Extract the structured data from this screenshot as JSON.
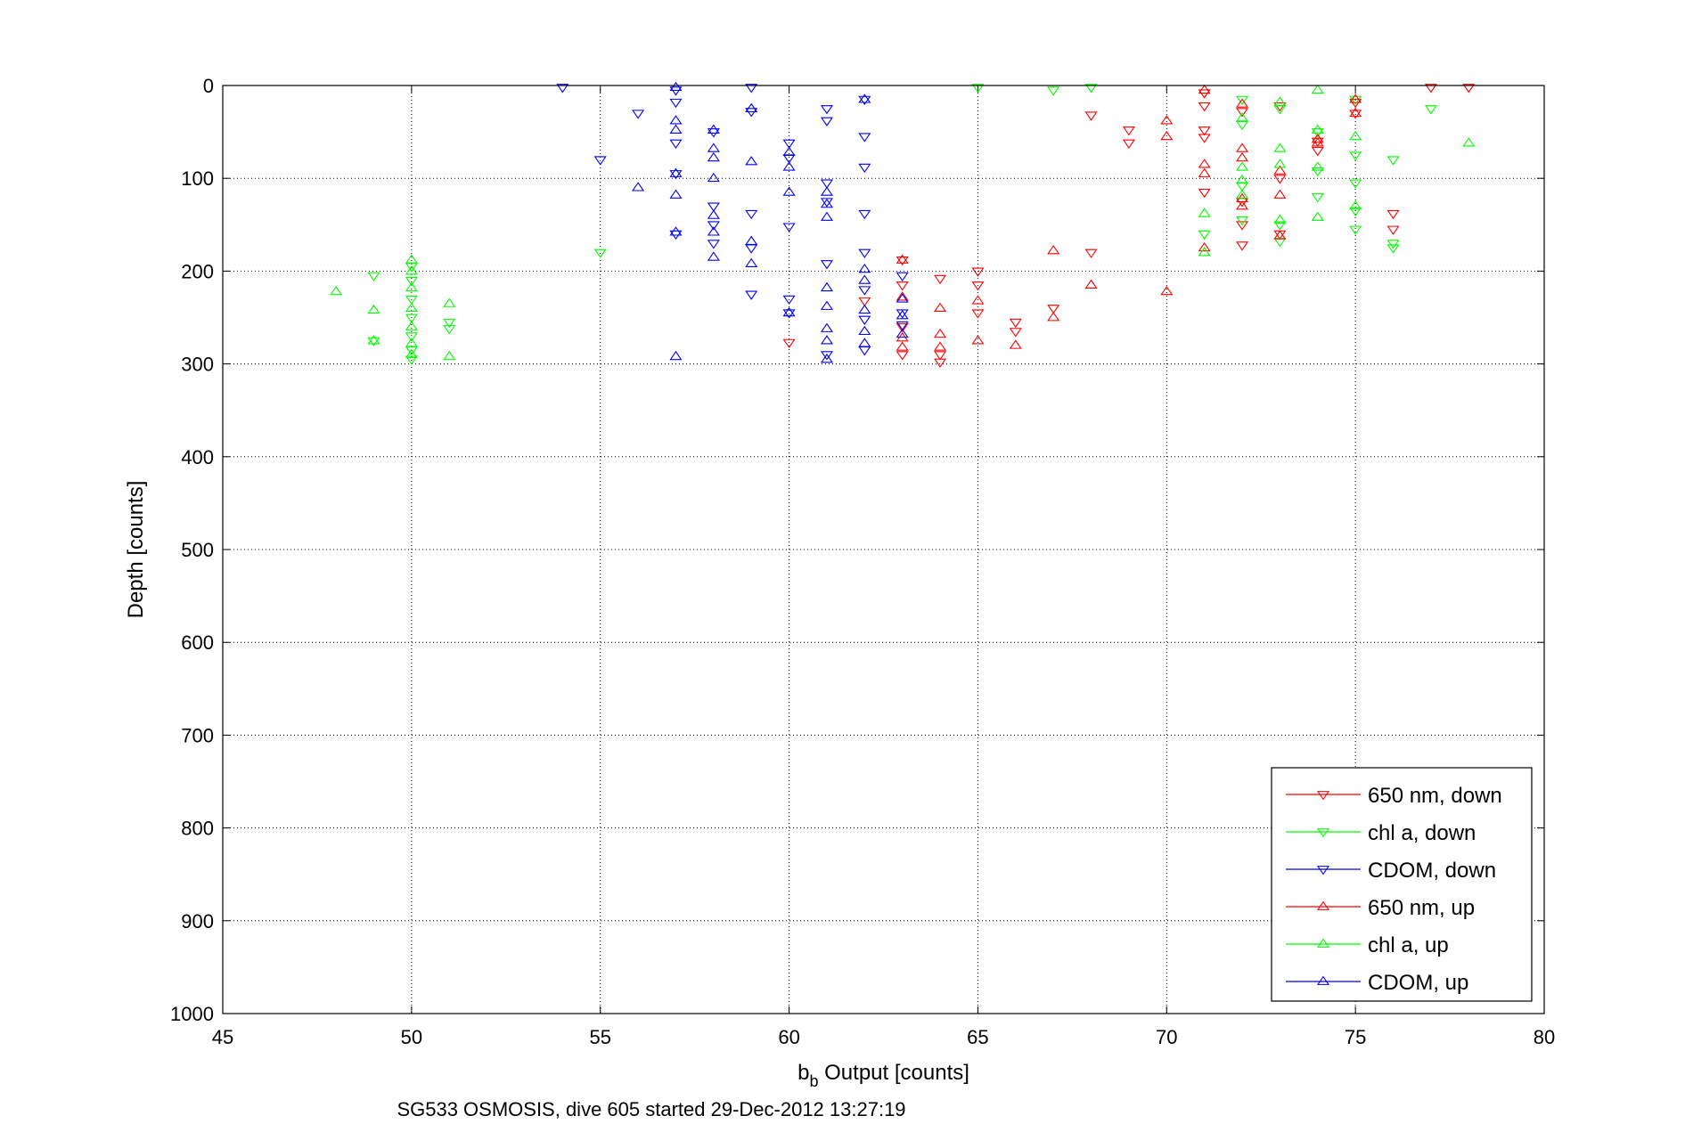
{
  "chart_data": {
    "type": "scatter",
    "xlabel_main": "b",
    "xlabel_sub": "b",
    "xlabel_rest": " Output [counts]",
    "ylabel": "Depth [counts]",
    "caption": "SG533 OSMOSIS, dive 605 started 29-Dec-2012 13:27:19",
    "xlim": [
      45,
      80
    ],
    "ylim": [
      0,
      1000
    ],
    "y_reversed": true,
    "grid": true,
    "legend_position": "bottom-right",
    "x_ticks": [
      45,
      50,
      55,
      60,
      65,
      70,
      75,
      80
    ],
    "y_ticks": [
      0,
      100,
      200,
      300,
      400,
      500,
      600,
      700,
      800,
      900,
      1000
    ],
    "series": [
      {
        "name": "650 nm, down",
        "color": "#ff0000",
        "marker": "triangle-down",
        "points": [
          [
            78,
            2
          ],
          [
            77,
            2
          ],
          [
            68,
            32
          ],
          [
            69,
            48
          ],
          [
            69,
            62
          ],
          [
            71,
            8
          ],
          [
            71,
            22
          ],
          [
            71,
            48
          ],
          [
            71,
            56
          ],
          [
            72,
            28
          ],
          [
            73,
            22
          ],
          [
            73,
            100
          ],
          [
            73,
            160
          ],
          [
            74,
            60
          ],
          [
            74,
            70
          ],
          [
            75,
            18
          ],
          [
            75,
            30
          ],
          [
            76,
            138
          ],
          [
            76,
            155
          ],
          [
            71,
            115
          ],
          [
            72,
            125
          ],
          [
            72,
            150
          ],
          [
            72,
            172
          ],
          [
            64,
            208
          ],
          [
            64,
            290
          ],
          [
            64,
            298
          ],
          [
            65,
            200
          ],
          [
            65,
            215
          ],
          [
            66,
            255
          ],
          [
            66,
            265
          ],
          [
            67,
            240
          ],
          [
            68,
            180
          ],
          [
            63,
            188
          ],
          [
            63,
            215
          ],
          [
            63,
            260
          ],
          [
            63,
            290
          ],
          [
            62,
            232
          ],
          [
            65,
            245
          ],
          [
            60,
            277
          ]
        ]
      },
      {
        "name": "chl a, down",
        "color": "#00ff00",
        "marker": "triangle-down",
        "points": [
          [
            65,
            2
          ],
          [
            67,
            5
          ],
          [
            68,
            2
          ],
          [
            77,
            25
          ],
          [
            72,
            15
          ],
          [
            72,
            42
          ],
          [
            73,
            25
          ],
          [
            74,
            50
          ],
          [
            75,
            15
          ],
          [
            75,
            75
          ],
          [
            75,
            155
          ],
          [
            76,
            80
          ],
          [
            76,
            170
          ],
          [
            76,
            175
          ],
          [
            71,
            160
          ],
          [
            72,
            108
          ],
          [
            72,
            145
          ],
          [
            73,
            150
          ],
          [
            73,
            168
          ],
          [
            74,
            92
          ],
          [
            74,
            120
          ],
          [
            75,
            105
          ],
          [
            75,
            135
          ],
          [
            55,
            180
          ],
          [
            49,
            205
          ],
          [
            49,
            275
          ],
          [
            50,
            195
          ],
          [
            50,
            210
          ],
          [
            50,
            230
          ],
          [
            50,
            250
          ],
          [
            50,
            270
          ],
          [
            50,
            285
          ],
          [
            50,
            295
          ],
          [
            51,
            255
          ],
          [
            51,
            262
          ]
        ]
      },
      {
        "name": "CDOM, down",
        "color": "#0000ff",
        "marker": "triangle-down",
        "points": [
          [
            54,
            2
          ],
          [
            55,
            80
          ],
          [
            56,
            30
          ],
          [
            57,
            5
          ],
          [
            57,
            18
          ],
          [
            57,
            62
          ],
          [
            57,
            95
          ],
          [
            57,
            160
          ],
          [
            58,
            50
          ],
          [
            58,
            130
          ],
          [
            58,
            150
          ],
          [
            58,
            170
          ],
          [
            59,
            2
          ],
          [
            59,
            28
          ],
          [
            59,
            138
          ],
          [
            59,
            175
          ],
          [
            59,
            225
          ],
          [
            60,
            62
          ],
          [
            60,
            78
          ],
          [
            60,
            152
          ],
          [
            60,
            230
          ],
          [
            60,
            245
          ],
          [
            61,
            25
          ],
          [
            61,
            38
          ],
          [
            61,
            105
          ],
          [
            61,
            125
          ],
          [
            61,
            192
          ],
          [
            61,
            290
          ],
          [
            62,
            15
          ],
          [
            62,
            55
          ],
          [
            62,
            88
          ],
          [
            62,
            138
          ],
          [
            62,
            180
          ],
          [
            62,
            220
          ],
          [
            62,
            252
          ],
          [
            62,
            285
          ],
          [
            63,
            205
          ],
          [
            63,
            245
          ],
          [
            63,
            258
          ]
        ]
      },
      {
        "name": "650 nm, up",
        "color": "#ff0000",
        "marker": "triangle-up",
        "points": [
          [
            70,
            38
          ],
          [
            70,
            55
          ],
          [
            70,
            222
          ],
          [
            71,
            5
          ],
          [
            71,
            85
          ],
          [
            71,
            95
          ],
          [
            71,
            175
          ],
          [
            72,
            20
          ],
          [
            72,
            68
          ],
          [
            72,
            78
          ],
          [
            72,
            122
          ],
          [
            72,
            130
          ],
          [
            73,
            92
          ],
          [
            73,
            118
          ],
          [
            73,
            162
          ],
          [
            74,
            58
          ],
          [
            74,
            62
          ],
          [
            75,
            30
          ],
          [
            75,
            15
          ],
          [
            67,
            178
          ],
          [
            68,
            215
          ],
          [
            67,
            250
          ],
          [
            66,
            280
          ],
          [
            65,
            232
          ],
          [
            65,
            275
          ],
          [
            64,
            240
          ],
          [
            64,
            268
          ],
          [
            64,
            282
          ],
          [
            63,
            188
          ],
          [
            63,
            228
          ],
          [
            63,
            272
          ],
          [
            63,
            282
          ]
        ]
      },
      {
        "name": "chl a, up",
        "color": "#00ff00",
        "marker": "triangle-up",
        "points": [
          [
            78,
            62
          ],
          [
            74,
            5
          ],
          [
            73,
            18
          ],
          [
            73,
            68
          ],
          [
            72,
            35
          ],
          [
            72,
            88
          ],
          [
            72,
            118
          ],
          [
            73,
            85
          ],
          [
            73,
            145
          ],
          [
            74,
            48
          ],
          [
            74,
            88
          ],
          [
            74,
            142
          ],
          [
            75,
            55
          ],
          [
            75,
            130
          ],
          [
            71,
            138
          ],
          [
            71,
            180
          ],
          [
            72,
            102
          ],
          [
            48,
            222
          ],
          [
            49,
            242
          ],
          [
            49,
            275
          ],
          [
            50,
            188
          ],
          [
            50,
            200
          ],
          [
            50,
            218
          ],
          [
            50,
            240
          ],
          [
            50,
            260
          ],
          [
            50,
            278
          ],
          [
            50,
            290
          ],
          [
            51,
            235
          ],
          [
            51,
            292
          ]
        ]
      },
      {
        "name": "CDOM, up",
        "color": "#0000ff",
        "marker": "triangle-up",
        "points": [
          [
            56,
            110
          ],
          [
            57,
            2
          ],
          [
            57,
            38
          ],
          [
            57,
            48
          ],
          [
            57,
            95
          ],
          [
            57,
            118
          ],
          [
            57,
            158
          ],
          [
            57,
            292
          ],
          [
            58,
            48
          ],
          [
            58,
            68
          ],
          [
            58,
            78
          ],
          [
            58,
            100
          ],
          [
            58,
            140
          ],
          [
            58,
            158
          ],
          [
            58,
            185
          ],
          [
            59,
            25
          ],
          [
            59,
            82
          ],
          [
            59,
            168
          ],
          [
            59,
            192
          ],
          [
            60,
            72
          ],
          [
            60,
            88
          ],
          [
            60,
            115
          ],
          [
            60,
            245
          ],
          [
            61,
            115
          ],
          [
            61,
            128
          ],
          [
            61,
            142
          ],
          [
            61,
            218
          ],
          [
            61,
            238
          ],
          [
            61,
            262
          ],
          [
            61,
            275
          ],
          [
            61,
            295
          ],
          [
            62,
            15
          ],
          [
            62,
            198
          ],
          [
            62,
            210
          ],
          [
            62,
            242
          ],
          [
            62,
            265
          ],
          [
            62,
            278
          ],
          [
            63,
            230
          ],
          [
            63,
            248
          ],
          [
            63,
            268
          ]
        ]
      }
    ]
  }
}
